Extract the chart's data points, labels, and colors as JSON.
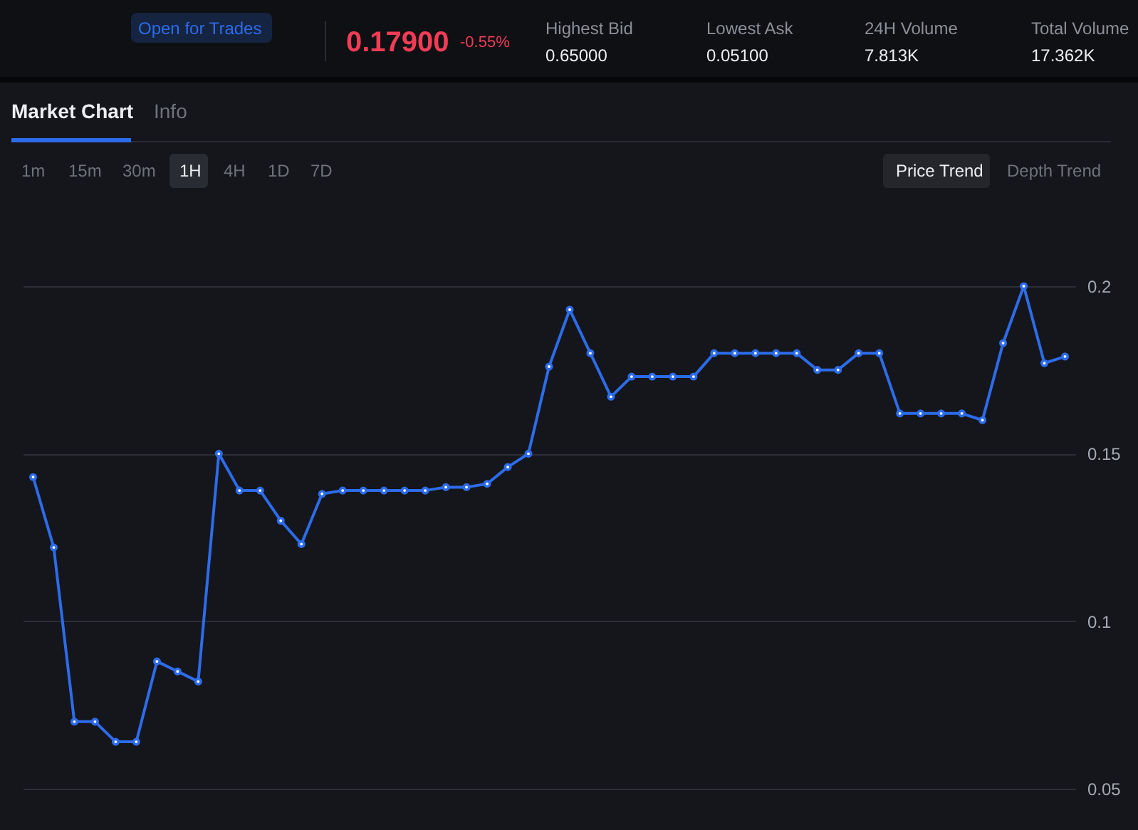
{
  "chart_data": {
    "type": "line",
    "categories": [
      null,
      null,
      null,
      null,
      null,
      null,
      null,
      null,
      null,
      null,
      null,
      null,
      null,
      null,
      null,
      null,
      null,
      null,
      null,
      null,
      null,
      null,
      null,
      null,
      null,
      null,
      null,
      null,
      null,
      null,
      null,
      null,
      null,
      null,
      null,
      null,
      null,
      null,
      null,
      null,
      null,
      null,
      null,
      null,
      null,
      null,
      null,
      null,
      null,
      null,
      null
    ],
    "series": [
      {
        "color": "#2d6cea",
        "values": [
          0.143,
          0.122,
          0.07,
          0.07,
          0.064,
          0.064,
          0.088,
          0.085,
          0.082,
          0.15,
          0.139,
          0.139,
          0.13,
          0.123,
          0.138,
          0.139,
          0.139,
          0.139,
          0.139,
          0.139,
          0.14,
          0.14,
          0.141,
          0.146,
          0.15,
          0.176,
          0.193,
          0.18,
          0.167,
          0.173,
          0.173,
          0.173,
          0.173,
          0.18,
          0.18,
          0.18,
          0.18,
          0.18,
          0.175,
          0.175,
          0.18,
          0.18,
          0.162,
          0.162,
          0.162,
          0.162,
          0.16,
          0.183,
          0.2,
          0.177,
          0.179
        ]
      }
    ],
    "ylim": [
      0.05,
      0.2
    ],
    "yticks": [
      0.05,
      0.1,
      0.15,
      0.2
    ],
    "grid": "y",
    "marker": "circle",
    "line_style": "solid",
    "tick_labels": "y",
    "legend": false,
    "annotations": [
      "Open for Trades",
      "0.17900",
      "-0.55%",
      "Highest Bid",
      "0.65000",
      "Lowest Ask",
      "0.05100",
      "24H Volume",
      "7.813K",
      "Total Volume",
      "17.362K",
      "Market Chart",
      "Info",
      "1m",
      "15m",
      "30m",
      "1H",
      "4H",
      "1D",
      "7D",
      "Price Trend",
      "Depth Trend"
    ]
  }
}
